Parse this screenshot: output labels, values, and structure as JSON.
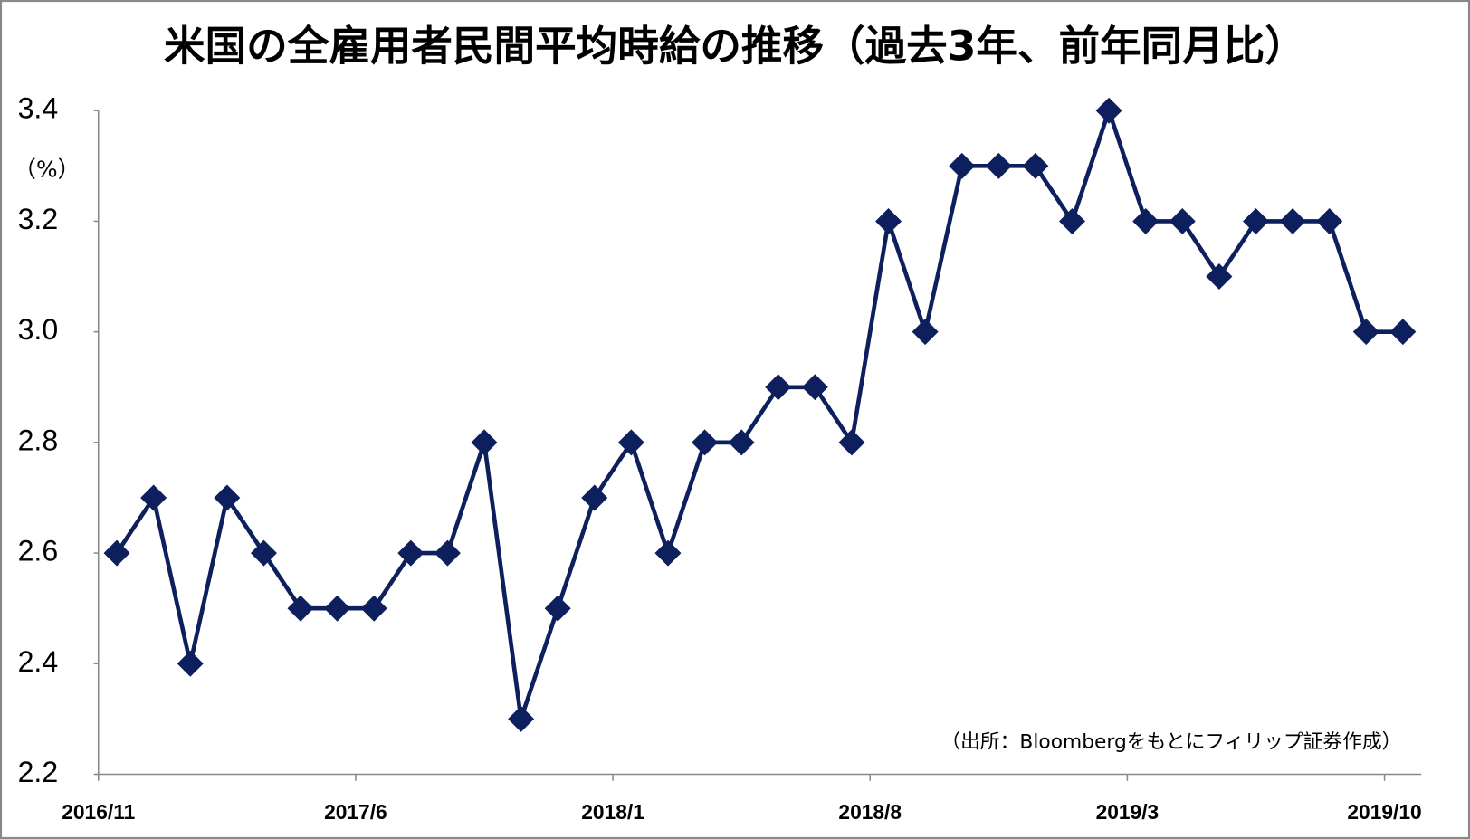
{
  "chart_data": {
    "type": "line",
    "title": "米国の全雇用者民間平均時給の推移（過去3年、前年同月比）",
    "y_unit_label": "（%）",
    "source": "（出所：Bloombergをもとにフィリップ証券作成）",
    "categories": [
      "2016/11",
      null,
      null,
      null,
      null,
      null,
      null,
      "2017/6",
      null,
      null,
      null,
      null,
      null,
      null,
      "2018/1",
      null,
      null,
      null,
      null,
      null,
      null,
      "2018/8",
      null,
      null,
      null,
      null,
      null,
      null,
      "2019/3",
      null,
      null,
      null,
      null,
      null,
      null,
      "2019/10"
    ],
    "series": [
      {
        "name": "前年同月比",
        "color": "#0d1f5c",
        "values": [
          2.6,
          2.7,
          2.4,
          2.7,
          2.6,
          2.5,
          2.5,
          2.5,
          2.6,
          2.6,
          2.8,
          2.3,
          2.5,
          2.7,
          2.8,
          2.6,
          2.8,
          2.8,
          2.9,
          2.9,
          2.8,
          3.2,
          3.0,
          3.3,
          3.3,
          3.3,
          3.2,
          3.4,
          3.2,
          3.2,
          3.1,
          3.2,
          3.2,
          3.2,
          3.0,
          3.0
        ]
      }
    ],
    "ylim": [
      2.2,
      3.4
    ],
    "yticks": [
      2.2,
      2.4,
      2.6,
      2.8,
      {
        "value": 3.0,
        "label": "3.0"
      },
      3.2,
      3.4
    ]
  }
}
